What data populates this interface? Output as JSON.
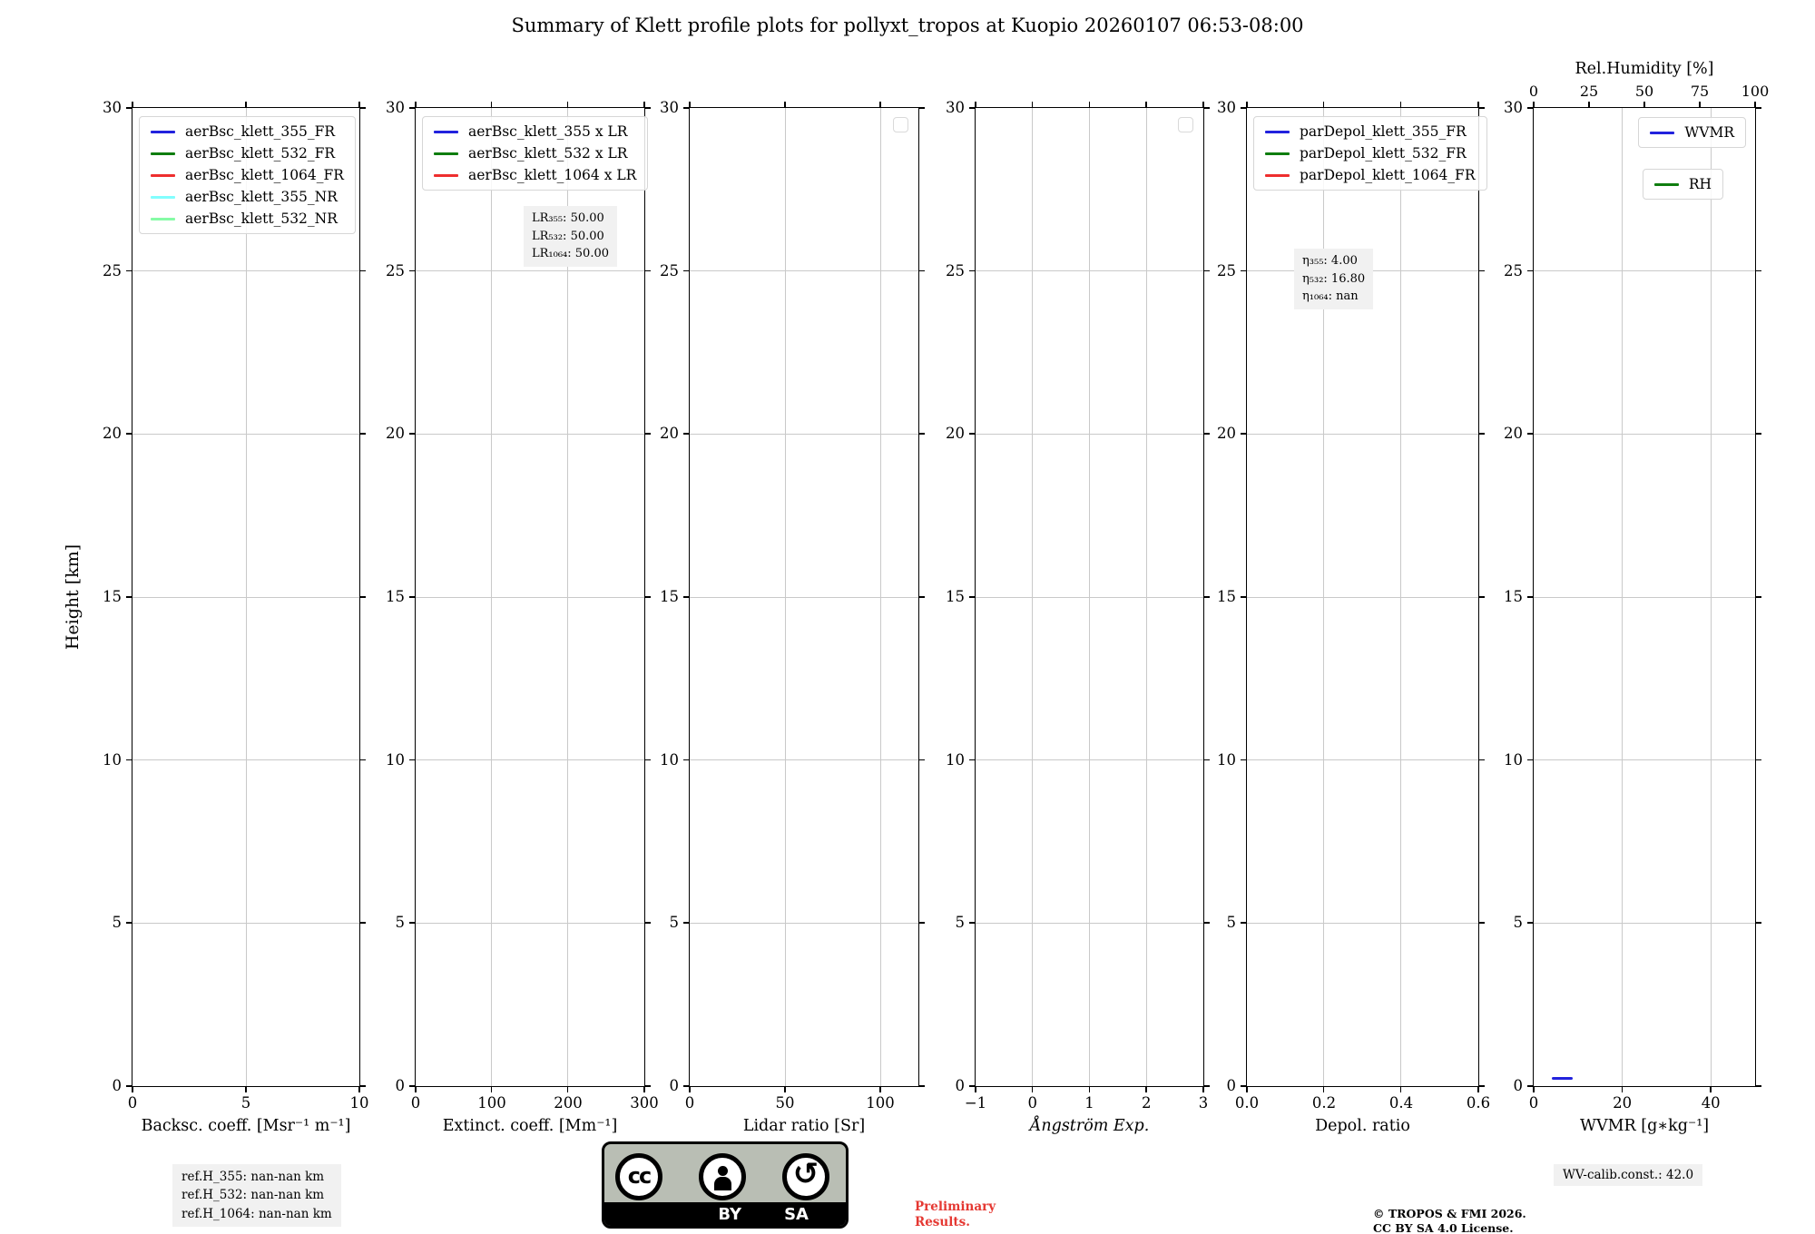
{
  "title": "Summary of Klett profile plots for pollyxt_tropos at Kuopio 20260107 06:53-08:00",
  "chart_data": {
    "type": "line",
    "shared_y": {
      "label": "Height [km]",
      "ylim": [
        0,
        30
      ],
      "yticks": [
        0,
        5,
        10,
        15,
        20,
        25,
        30
      ]
    },
    "grid": "on",
    "panels": [
      {
        "name": "backscatter",
        "xlabel": "Backsc. coeff. [Msr⁻¹ m⁻¹]",
        "xlim": [
          0,
          10
        ],
        "xticks": [
          0,
          5,
          10
        ],
        "xtick_labels": [
          "0",
          "5",
          "10"
        ],
        "legend_position": "top-left",
        "legend": [
          {
            "label": "aerBsc_klett_355_FR",
            "color": "#2222dd"
          },
          {
            "label": "aerBsc_klett_532_FR",
            "color": "#0f7d0f"
          },
          {
            "label": "aerBsc_klett_1064_FR",
            "color": "#ee2e2e"
          },
          {
            "label": "aerBsc_klett_355_NR",
            "color": "#82fefe"
          },
          {
            "label": "aerBsc_klett_532_NR",
            "color": "#86fba6"
          }
        ],
        "series": []
      },
      {
        "name": "extinction",
        "xlabel": "Extinct. coeff. [Mm⁻¹]",
        "xlim": [
          0,
          300
        ],
        "xticks": [
          0,
          100,
          200,
          300
        ],
        "xtick_labels": [
          "0",
          "100",
          "200",
          "300"
        ],
        "legend_position": "top-left",
        "legend": [
          {
            "label": "aerBsc_klett_355 x LR",
            "color": "#2222dd"
          },
          {
            "label": "aerBsc_klett_532 x LR",
            "color": "#0f7d0f"
          },
          {
            "label": "aerBsc_klett_1064 x LR",
            "color": "#ee2e2e"
          }
        ],
        "note_lines": [
          "LR₃₅₅: 50.00",
          "LR₅₃₂: 50.00",
          "LR₁₀₆₄: 50.00"
        ],
        "series": []
      },
      {
        "name": "lidar-ratio",
        "xlabel": "Lidar ratio [Sr]",
        "xlim": [
          0,
          120
        ],
        "xticks": [
          0,
          50,
          100
        ],
        "xtick_labels": [
          "0",
          "50",
          "100"
        ],
        "legend_position": "top-right-empty",
        "series": []
      },
      {
        "name": "angstrom",
        "xlabel": "Ångström Exp.",
        "xlabel_italic": true,
        "xlim": [
          -1,
          3
        ],
        "xticks": [
          -1,
          0,
          1,
          2,
          3
        ],
        "xtick_labels": [
          "−1",
          "0",
          "1",
          "2",
          "3"
        ],
        "legend_position": "top-right-empty",
        "series": []
      },
      {
        "name": "depol",
        "xlabel": "Depol. ratio",
        "xlim": [
          0,
          0.6
        ],
        "xticks": [
          0,
          0.2,
          0.4,
          0.6
        ],
        "xtick_labels": [
          "0.0",
          "0.2",
          "0.4",
          "0.6"
        ],
        "legend_position": "top-left",
        "legend": [
          {
            "label": "parDepol_klett_355_FR",
            "color": "#2222dd"
          },
          {
            "label": "parDepol_klett_532_FR",
            "color": "#0f7d0f"
          },
          {
            "label": "parDepol_klett_1064_FR",
            "color": "#ee2e2e"
          }
        ],
        "note_lines": [
          "η₃₅₅: 4.00",
          "η₅₃₂: 16.80",
          "η₁₀₆₄: nan"
        ],
        "series": []
      },
      {
        "name": "wvmr",
        "xlabel": "WVMR [g∗kg⁻¹]",
        "xlim": [
          0,
          50
        ],
        "xticks": [
          0,
          20,
          40
        ],
        "xtick_labels": [
          "0",
          "20",
          "40"
        ],
        "top_axis": {
          "label": "Rel.Humidity [%]",
          "xlim": [
            0,
            100
          ],
          "ticks": [
            0,
            25,
            50,
            75,
            100
          ],
          "tick_labels": [
            "0",
            "25",
            "50",
            "75",
            "100"
          ]
        },
        "legend_position": "split-right",
        "legend": [
          {
            "label": "WVMR",
            "color": "#2222dd"
          },
          {
            "label": "RH",
            "color": "#0f7d0f"
          }
        ],
        "series": [
          {
            "name": "WVMR",
            "color": "#2222dd",
            "points": [
              [
                4.2,
                0.25
              ],
              [
                8.8,
                0.25
              ]
            ]
          }
        ]
      }
    ]
  },
  "footer": {
    "ref_heights": [
      "ref.H_355: nan-nan km",
      "ref.H_532: nan-nan km",
      "ref.H_1064: nan-nan km"
    ],
    "badge": {
      "cc": "cc",
      "by": "BY",
      "sa": "SA"
    },
    "preliminary_lines": [
      "Preliminary",
      "Results."
    ],
    "preliminary_color": "#e53832",
    "copyright_lines": [
      "© TROPOS & FMI 2026.",
      "CC BY SA 4.0 License."
    ],
    "wv_calib": "WV-calib.const.: 42.0"
  }
}
